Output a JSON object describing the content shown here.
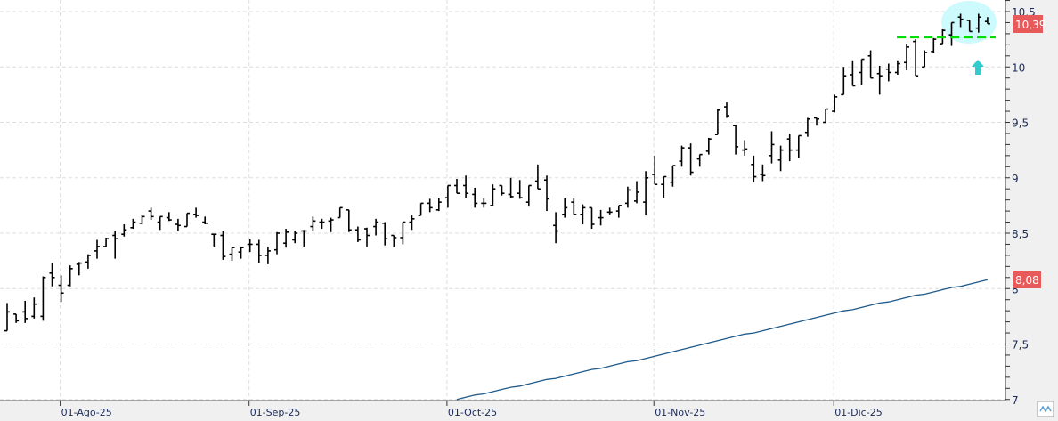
{
  "chart_data": {
    "type": "ohlc",
    "title": "",
    "xlabel": "",
    "ylabel": "",
    "ylim": [
      7,
      10.58
    ],
    "grid": true,
    "y_ticks": [
      "7",
      "7,5",
      "8",
      "8,5",
      "9",
      "9,5",
      "10",
      "10,5"
    ],
    "y_tick_values": [
      7,
      7.5,
      8,
      8.5,
      9,
      9.5,
      10,
      10.5
    ],
    "x_ticks": [
      {
        "label": "01-Ago-25",
        "bar": 6
      },
      {
        "label": "01-Sep-25",
        "bar": 27
      },
      {
        "label": "01-Oct-25",
        "bar": 49
      },
      {
        "label": "01-Nov-25",
        "bar": 72
      },
      {
        "label": "01-Dic-25",
        "bar": 92
      }
    ],
    "ohlc_fields": [
      "open",
      "high",
      "low",
      "close"
    ],
    "bars": [
      [
        7.62,
        7.87,
        7.62,
        7.79
      ],
      [
        7.77,
        7.77,
        7.69,
        7.71
      ],
      [
        7.79,
        7.89,
        7.69,
        7.73
      ],
      [
        7.75,
        7.92,
        7.73,
        7.86
      ],
      [
        7.75,
        8.11,
        7.71,
        8.1
      ],
      [
        8.14,
        8.23,
        8.02,
        8.1
      ],
      [
        8.03,
        8.12,
        7.88,
        7.96
      ],
      [
        8.03,
        8.21,
        8.02,
        8.18
      ],
      [
        8.22,
        8.24,
        8.12,
        8.23
      ],
      [
        8.24,
        8.31,
        8.18,
        8.3
      ],
      [
        8.34,
        8.44,
        8.27,
        8.38
      ],
      [
        8.38,
        8.46,
        8.38,
        8.45
      ],
      [
        8.48,
        8.52,
        8.27,
        8.45
      ],
      [
        8.49,
        8.58,
        8.47,
        8.53
      ],
      [
        8.55,
        8.63,
        8.54,
        8.6
      ],
      [
        8.59,
        8.66,
        8.58,
        8.65
      ],
      [
        8.7,
        8.73,
        8.62,
        8.65
      ],
      [
        8.6,
        8.65,
        8.53,
        8.65
      ],
      [
        8.64,
        8.69,
        8.61,
        8.62
      ],
      [
        8.58,
        8.63,
        8.52,
        8.57
      ],
      [
        8.56,
        8.68,
        8.56,
        8.68
      ],
      [
        8.67,
        8.73,
        8.64,
        8.66
      ],
      [
        8.6,
        8.65,
        8.58,
        8.59
      ],
      [
        8.49,
        8.49,
        8.38,
        8.49
      ],
      [
        8.48,
        8.52,
        8.26,
        8.29
      ],
      [
        8.31,
        8.37,
        8.25,
        8.37
      ],
      [
        8.33,
        8.38,
        8.27,
        8.37
      ],
      [
        8.4,
        8.45,
        8.33,
        8.4
      ],
      [
        8.4,
        8.44,
        8.23,
        8.3
      ],
      [
        8.3,
        8.38,
        8.22,
        8.34
      ],
      [
        8.35,
        8.51,
        8.31,
        8.5
      ],
      [
        8.41,
        8.54,
        8.37,
        8.51
      ],
      [
        8.44,
        8.52,
        8.41,
        8.5
      ],
      [
        8.52,
        8.53,
        8.38,
        8.52
      ],
      [
        8.56,
        8.65,
        8.52,
        8.61
      ],
      [
        8.6,
        8.63,
        8.54,
        8.6
      ],
      [
        8.61,
        8.64,
        8.51,
        8.62
      ],
      [
        8.64,
        8.73,
        8.64,
        8.73
      ],
      [
        8.71,
        8.71,
        8.51,
        8.53
      ],
      [
        8.53,
        8.56,
        8.42,
        8.44
      ],
      [
        8.54,
        8.55,
        8.38,
        8.48
      ],
      [
        8.56,
        8.63,
        8.48,
        8.6
      ],
      [
        8.59,
        8.6,
        8.39,
        8.45
      ],
      [
        8.48,
        8.48,
        8.38,
        8.46
      ],
      [
        8.46,
        8.6,
        8.4,
        8.6
      ],
      [
        8.6,
        8.66,
        8.53,
        8.63
      ],
      [
        8.66,
        8.77,
        8.66,
        8.77
      ],
      [
        8.77,
        8.81,
        8.69,
        8.73
      ],
      [
        8.71,
        8.82,
        8.7,
        8.78
      ],
      [
        8.82,
        8.93,
        8.73,
        8.93
      ],
      [
        8.93,
        8.99,
        8.86,
        8.86
      ],
      [
        8.93,
        9.02,
        8.82,
        8.86
      ],
      [
        8.85,
        8.91,
        8.73,
        8.77
      ],
      [
        8.77,
        8.82,
        8.73,
        8.77
      ],
      [
        8.75,
        8.94,
        8.75,
        8.9
      ],
      [
        8.93,
        8.93,
        8.84,
        8.86
      ],
      [
        8.85,
        9.0,
        8.82,
        8.83
      ],
      [
        8.86,
        8.98,
        8.81,
        8.82
      ],
      [
        8.78,
        8.93,
        8.74,
        8.93
      ],
      [
        8.97,
        9.12,
        8.9,
        8.9
      ],
      [
        8.98,
        9.02,
        8.7,
        8.81
      ],
      [
        8.57,
        8.69,
        8.41,
        8.52
      ],
      [
        8.67,
        8.82,
        8.64,
        8.73
      ],
      [
        8.78,
        8.82,
        8.67,
        8.67
      ],
      [
        8.67,
        8.76,
        8.58,
        8.73
      ],
      [
        8.73,
        8.73,
        8.54,
        8.58
      ],
      [
        8.64,
        8.71,
        8.57,
        8.64
      ],
      [
        8.69,
        8.73,
        8.67,
        8.69
      ],
      [
        8.7,
        8.75,
        8.64,
        8.75
      ],
      [
        8.77,
        8.92,
        8.73,
        8.89
      ],
      [
        8.79,
        8.97,
        8.77,
        8.87
      ],
      [
        8.78,
        9.06,
        8.66,
        9.0
      ],
      [
        9.03,
        9.2,
        8.94,
        8.94
      ],
      [
        8.94,
        9.01,
        8.82,
        9.01
      ],
      [
        8.96,
        9.11,
        8.92,
        9.11
      ],
      [
        9.15,
        9.29,
        9.1,
        9.27
      ],
      [
        9.27,
        9.31,
        9.02,
        9.05
      ],
      [
        9.17,
        9.21,
        9.1,
        9.21
      ],
      [
        9.24,
        9.36,
        9.21,
        9.35
      ],
      [
        9.39,
        9.62,
        9.39,
        9.61
      ],
      [
        9.64,
        9.68,
        9.54,
        9.56
      ],
      [
        9.47,
        9.48,
        9.21,
        9.28
      ],
      [
        9.25,
        9.34,
        9.2,
        9.26
      ],
      [
        9.12,
        9.2,
        8.96,
        9.01
      ],
      [
        9.03,
        9.12,
        8.97,
        9.02
      ],
      [
        9.2,
        9.42,
        9.13,
        9.3
      ],
      [
        9.16,
        9.29,
        9.06,
        9.25
      ],
      [
        9.35,
        9.4,
        9.15,
        9.25
      ],
      [
        9.25,
        9.38,
        9.18,
        9.38
      ],
      [
        9.41,
        9.54,
        9.37,
        9.53
      ],
      [
        9.54,
        9.54,
        9.47,
        9.53
      ],
      [
        9.5,
        9.62,
        9.5,
        9.62
      ],
      [
        9.6,
        9.75,
        9.59,
        9.73
      ],
      [
        9.75,
        10.0,
        9.75,
        9.92
      ],
      [
        9.93,
        10.06,
        9.83,
        9.83
      ],
      [
        9.95,
        10.07,
        9.84,
        10.07
      ],
      [
        10.1,
        10.15,
        9.9,
        9.9
      ],
      [
        9.94,
        10.01,
        9.75,
        9.92
      ],
      [
        9.98,
        10.03,
        9.87,
        9.95
      ],
      [
        9.95,
        10.06,
        9.93,
        10.03
      ],
      [
        10.04,
        10.21,
        9.97,
        10.18
      ],
      [
        10.23,
        10.25,
        9.92,
        9.92
      ],
      [
        10.0,
        10.15,
        10.0,
        10.13
      ],
      [
        10.14,
        10.26,
        10.13,
        10.25
      ],
      [
        10.21,
        10.34,
        10.21,
        10.33
      ],
      [
        10.29,
        10.4,
        10.19,
        10.4
      ],
      [
        10.45,
        10.48,
        10.36,
        10.43
      ],
      [
        10.42,
        10.42,
        10.32,
        10.32
      ],
      [
        10.35,
        10.48,
        10.31,
        10.45
      ],
      [
        10.41,
        10.45,
        10.39,
        10.39
      ]
    ],
    "moving_average": {
      "first_bar": 50,
      "values": [
        7.0,
        7.02,
        7.04,
        7.05,
        7.07,
        7.09,
        7.11,
        7.12,
        7.14,
        7.16,
        7.18,
        7.19,
        7.21,
        7.23,
        7.25,
        7.27,
        7.28,
        7.3,
        7.32,
        7.34,
        7.35,
        7.37,
        7.39,
        7.41,
        7.43,
        7.45,
        7.47,
        7.49,
        7.51,
        7.53,
        7.55,
        7.57,
        7.59,
        7.6,
        7.62,
        7.64,
        7.66,
        7.68,
        7.7,
        7.72,
        7.74,
        7.76,
        7.78,
        7.8,
        7.81,
        7.83,
        7.85,
        7.87,
        7.88,
        7.9,
        7.92,
        7.94,
        7.95,
        7.97,
        7.99,
        8.01,
        8.02,
        8.04,
        8.06,
        8.08
      ],
      "color": "#1f5a8a"
    },
    "last_price_tag": "10,39",
    "ma_price_tag": "8,08",
    "tag_color": "#e85a5a",
    "annotations": {
      "support_level": 10.27,
      "support_color": "#00e000",
      "highlight_color": "#ccfafd",
      "arrow_color": "#33cccc",
      "arrow_icon": "up-arrow-icon"
    },
    "corner_button_icon": "chart-type-icon"
  }
}
